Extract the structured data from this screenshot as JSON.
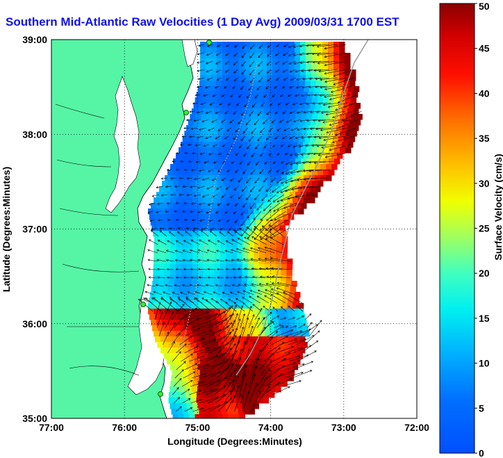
{
  "title": "Southern Mid-Atlantic Raw Velocities (1 Day Avg) 2009/03/31 1700 EST",
  "xlabel": "Longitude (Degrees:Minutes)",
  "ylabel": "Latitude (Degrees:Minutes)",
  "x_ticks": [
    "77:00",
    "76:00",
    "75:00",
    "74:00",
    "73:00",
    "72:00"
  ],
  "y_ticks": [
    "39:00",
    "38:00",
    "37:00",
    "36:00",
    "35:00"
  ],
  "colorbar": {
    "label": "Surface Velocity (cm/s)",
    "ticks": [
      "0",
      "5",
      "10",
      "15",
      "20",
      "25",
      "30",
      "35",
      "40",
      "45",
      "50"
    ],
    "min": 0,
    "max": 50,
    "colormap": "jet"
  },
  "colors": {
    "title": "#1010ee",
    "land": "#55f5a5",
    "coast_line": "#000000",
    "grid": "#000000"
  },
  "map": {
    "lon_range": [
      -77,
      -72
    ],
    "lat_range": [
      35,
      39
    ],
    "station_markers": 4
  }
}
